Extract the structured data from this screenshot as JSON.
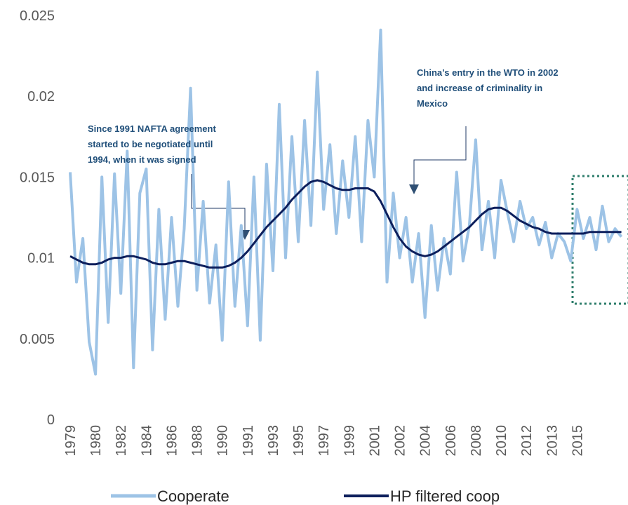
{
  "chart_data": {
    "type": "line",
    "categories": [
      "1979",
      null,
      null,
      null,
      "1980",
      null,
      null,
      null,
      "1982",
      null,
      null,
      null,
      "1984",
      null,
      null,
      null,
      "1986",
      null,
      null,
      null,
      "1988",
      null,
      null,
      null,
      "1990",
      null,
      null,
      null,
      "1991",
      null,
      null,
      null,
      "1993",
      null,
      null,
      null,
      "1995",
      null,
      null,
      null,
      "1997",
      null,
      null,
      null,
      "1999",
      null,
      null,
      null,
      "2001",
      null,
      null,
      null,
      "2002",
      null,
      null,
      null,
      "2004",
      null,
      null,
      null,
      "2006",
      null,
      null,
      null,
      "2008",
      null,
      null,
      null,
      "2010",
      null,
      null,
      null,
      "2012",
      null,
      null,
      null,
      "2013",
      null,
      null,
      null,
      "2015",
      null,
      null,
      null,
      null,
      null,
      null,
      null
    ],
    "series": [
      {
        "name": "Cooperate",
        "color": "#9dc3e6",
        "values": [
          0.0153,
          0.0085,
          0.0112,
          0.0048,
          0.0028,
          0.015,
          0.006,
          0.0152,
          0.0078,
          0.0166,
          0.0032,
          0.014,
          0.0155,
          0.0043,
          0.013,
          0.0062,
          0.0125,
          0.007,
          0.0118,
          0.0205,
          0.008,
          0.0135,
          0.0072,
          0.0108,
          0.0049,
          0.0147,
          0.007,
          0.012,
          0.0058,
          0.015,
          0.0049,
          0.0158,
          0.0092,
          0.0195,
          0.01,
          0.0175,
          0.011,
          0.0185,
          0.012,
          0.0215,
          0.013,
          0.017,
          0.0115,
          0.016,
          0.0125,
          0.0175,
          0.011,
          0.0185,
          0.015,
          0.0241,
          0.0085,
          0.014,
          0.01,
          0.0125,
          0.0085,
          0.0115,
          0.0063,
          0.012,
          0.008,
          0.0112,
          0.009,
          0.0153,
          0.0098,
          0.012,
          0.0173,
          0.0105,
          0.0135,
          0.01,
          0.0148,
          0.0128,
          0.011,
          0.0135,
          0.0118,
          0.0125,
          0.0108,
          0.0122,
          0.01,
          0.0115,
          0.011,
          0.0098,
          0.013,
          0.0112,
          0.0125,
          0.0105,
          0.0132,
          0.011,
          0.0118,
          0.0113
        ]
      },
      {
        "name": "HP filtered coop",
        "color": "#0d1f5c",
        "values": [
          0.0101,
          0.0099,
          0.0097,
          0.0096,
          0.0096,
          0.0097,
          0.0099,
          0.01,
          0.01,
          0.0101,
          0.0101,
          0.01,
          0.0099,
          0.0097,
          0.0096,
          0.0096,
          0.0097,
          0.0098,
          0.0098,
          0.0097,
          0.0096,
          0.0095,
          0.0094,
          0.0094,
          0.0094,
          0.0095,
          0.0097,
          0.01,
          0.0104,
          0.0109,
          0.0114,
          0.0119,
          0.0123,
          0.0127,
          0.0131,
          0.0136,
          0.014,
          0.0144,
          0.0147,
          0.0148,
          0.0147,
          0.0145,
          0.0143,
          0.0142,
          0.0142,
          0.0143,
          0.0143,
          0.0143,
          0.0141,
          0.0135,
          0.0127,
          0.0119,
          0.0112,
          0.0107,
          0.0104,
          0.0102,
          0.0101,
          0.0102,
          0.0104,
          0.0107,
          0.011,
          0.0113,
          0.0116,
          0.0119,
          0.0123,
          0.0127,
          0.013,
          0.0131,
          0.0131,
          0.0129,
          0.0126,
          0.0123,
          0.0121,
          0.0119,
          0.0118,
          0.0116,
          0.0115,
          0.0115,
          0.0115,
          0.0115,
          0.0115,
          0.0115,
          0.0116,
          0.0116,
          0.0116,
          0.0116,
          0.0116,
          0.0116
        ]
      }
    ],
    "ylim": [
      0,
      0.025
    ],
    "yticks": [
      0,
      0.005,
      0.01,
      0.015,
      0.02,
      0.025
    ],
    "annotations": [
      {
        "lines": [
          "Since 1991 NAFTA  agreement",
          "started to be negotiated until",
          "1994, when it was signed"
        ]
      },
      {
        "lines": [
          "China’s entry in the WTO in 2002",
          "and increase of criminality in",
          "Mexico"
        ]
      }
    ]
  }
}
